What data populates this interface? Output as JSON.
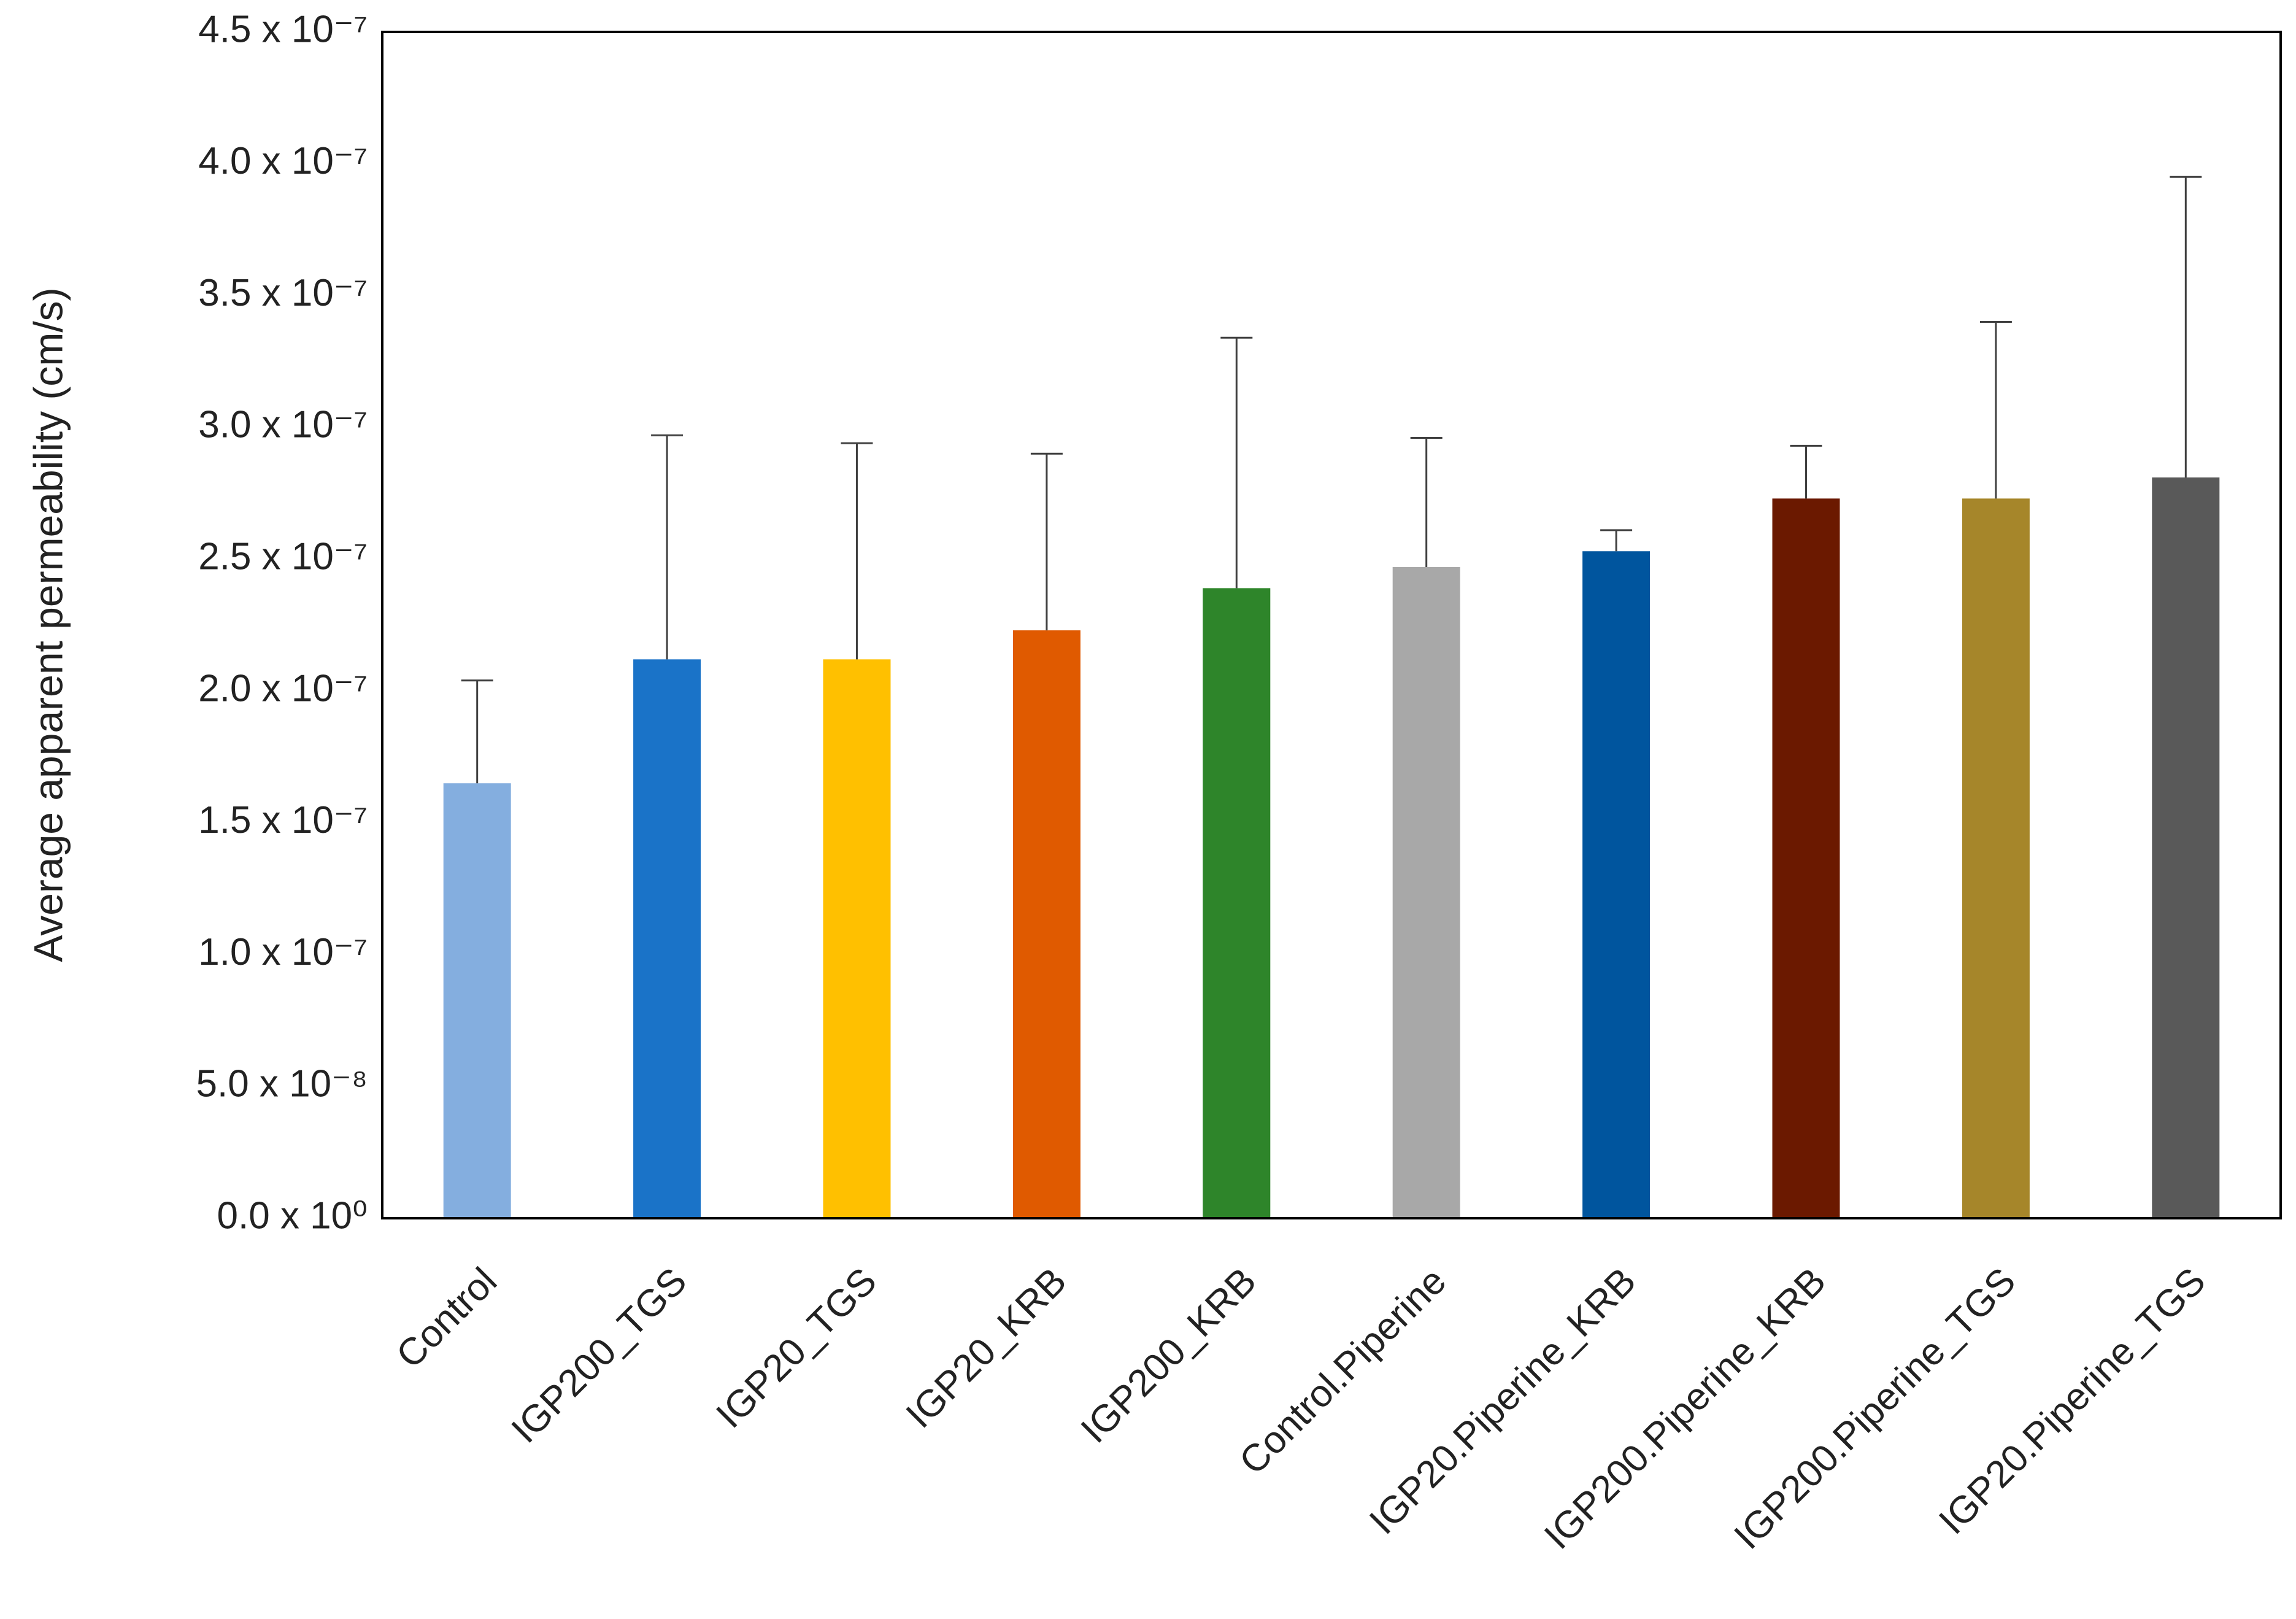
{
  "chart_data": {
    "type": "bar",
    "y_label": "Average apparent permeability (cm/s)",
    "categories": [
      "Control",
      "IGP200_TGS",
      "IGP20_TGS",
      "IGP20_KRB",
      "IGP200_KRB",
      "Control.Piperine",
      "IGP20.Piperine_KRB",
      "IGP200.Piperine_KRB",
      "IGP200.Piperine_TGS",
      "IGP20.Piperine_TGS"
    ],
    "values": [
      1.65e-07,
      2.12e-07,
      2.12e-07,
      2.23e-07,
      2.39e-07,
      2.47e-07,
      2.53e-07,
      2.73e-07,
      2.73e-07,
      2.81e-07
    ],
    "errors": [
      3.9e-08,
      8.5e-08,
      8.2e-08,
      6.7e-08,
      9.5e-08,
      4.9e-08,
      8e-09,
      2e-08,
      6.7e-08,
      1.14e-07
    ],
    "colors": [
      "#84aedf",
      "#1a73c8",
      "#ffc000",
      "#e05a00",
      "#2e852a",
      "#a8a8a8",
      "#00559e",
      "#6b1900",
      "#a6862a",
      "#595959"
    ],
    "ylim": [
      0,
      4.5e-07
    ],
    "yticks": [
      {
        "value": 0,
        "label": "0.0 x 10⁰"
      },
      {
        "value": 5e-08,
        "label": "5.0 x 10⁻⁸"
      },
      {
        "value": 1e-07,
        "label": "1.0 x 10⁻⁷"
      },
      {
        "value": 1.5e-07,
        "label": "1.5 x 10⁻⁷"
      },
      {
        "value": 2e-07,
        "label": "2.0 x 10⁻⁷"
      },
      {
        "value": 2.5e-07,
        "label": "2.5 x 10⁻⁷"
      },
      {
        "value": 3e-07,
        "label": "3.0 x 10⁻⁷"
      },
      {
        "value": 3.5e-07,
        "label": "3.5 x 10⁻⁷"
      },
      {
        "value": 4e-07,
        "label": "4.0 x 10⁻⁷"
      },
      {
        "value": 4.5e-07,
        "label": "4.5 x 10⁻⁷"
      }
    ],
    "grid": false
  }
}
